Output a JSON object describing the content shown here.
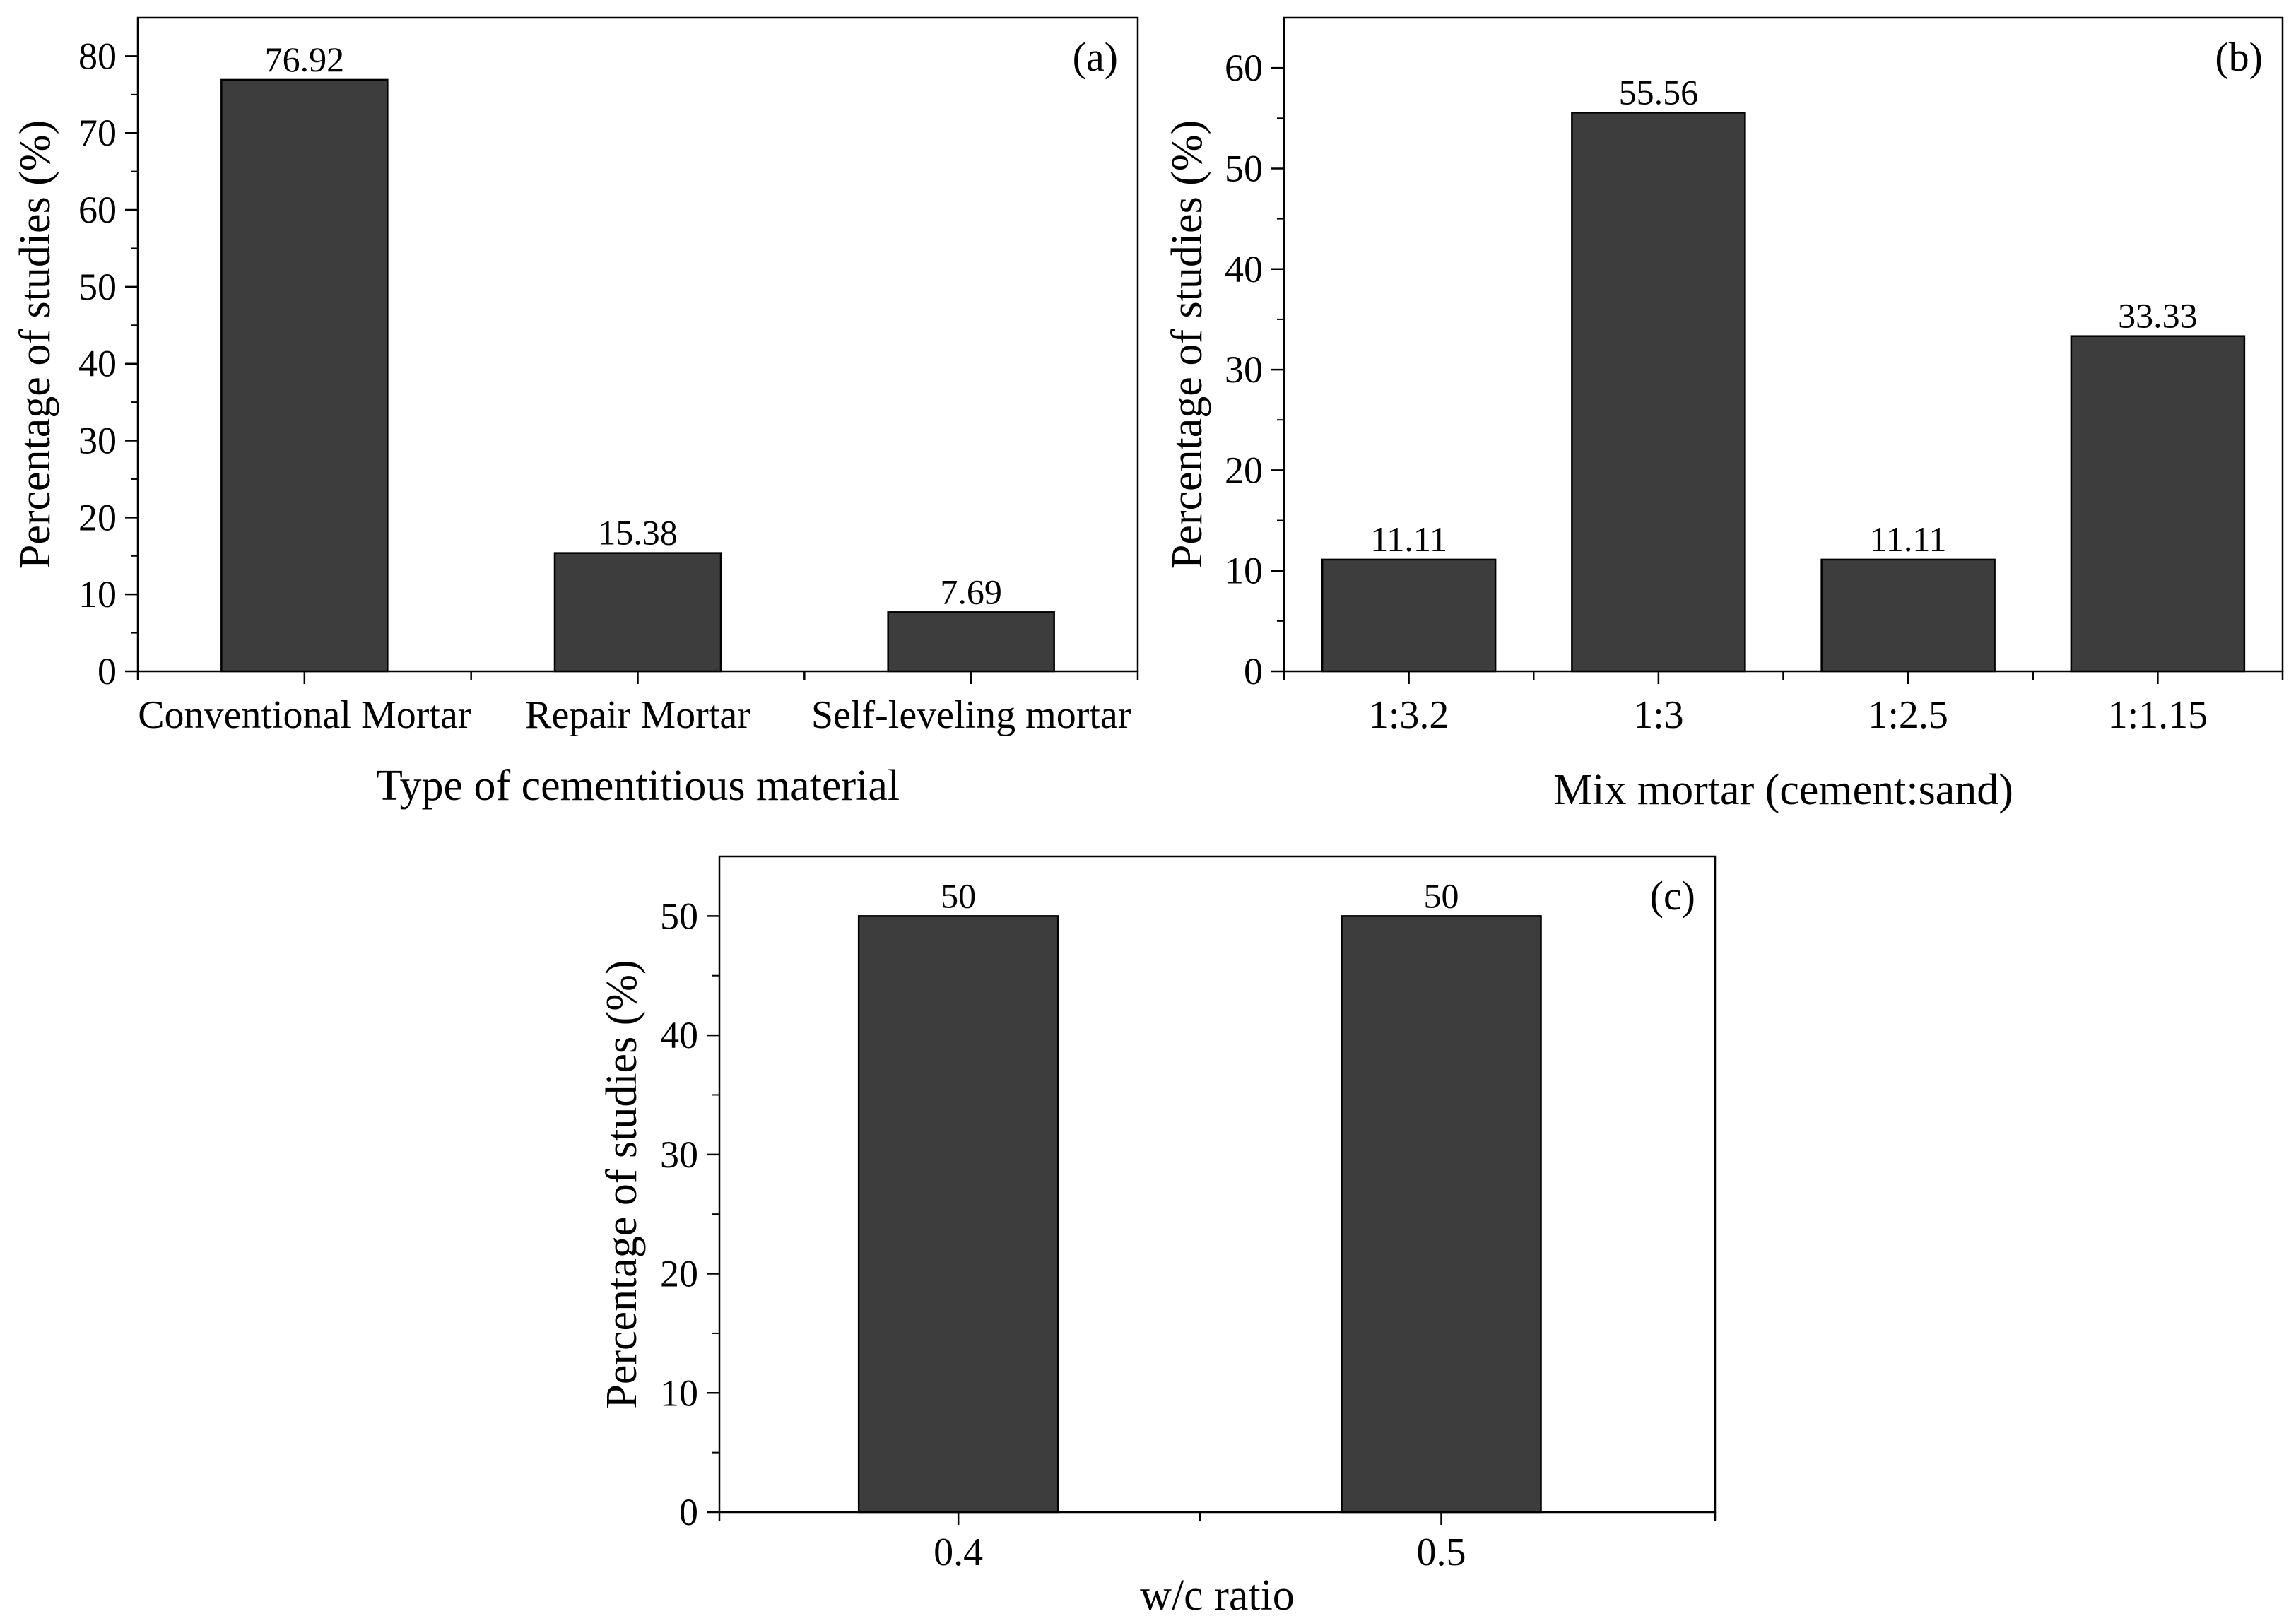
{
  "figure": {
    "colors": {
      "bar": "#3d3d3d",
      "stroke": "#000000",
      "background": "#ffffff"
    }
  },
  "chart_data": [
    {
      "id": "a",
      "type": "bar",
      "panel_label": "(a)",
      "title": "",
      "xlabel": "Type of cementitious material",
      "ylabel": "Percentage of studies (%)",
      "categories": [
        "Conventional Mortar",
        "Repair Mortar",
        "Self-leveling mortar"
      ],
      "values": [
        76.92,
        15.38,
        7.69
      ],
      "value_labels": [
        "76.92",
        "15.38",
        "7.69"
      ],
      "ylim": [
        0,
        85
      ],
      "yticks": [
        0,
        10,
        20,
        30,
        40,
        50,
        60,
        70,
        80
      ],
      "ytick_labels": [
        "0",
        "10",
        "20",
        "30",
        "40",
        "50",
        "60",
        "70",
        "80"
      ],
      "grid": false
    },
    {
      "id": "b",
      "type": "bar",
      "panel_label": "(b)",
      "title": "",
      "xlabel": "Mix mortar (cement:sand)",
      "ylabel": "Percentage of studies (%)",
      "categories": [
        "1:3.2",
        "1:3",
        "1:2.5",
        "1:1.15"
      ],
      "values": [
        11.11,
        55.56,
        11.11,
        33.33
      ],
      "value_labels": [
        "11.11",
        "55.56",
        "11.11",
        "33.33"
      ],
      "ylim": [
        0,
        65
      ],
      "yticks": [
        0,
        10,
        20,
        30,
        40,
        50,
        60
      ],
      "ytick_labels": [
        "0",
        "10",
        "20",
        "30",
        "40",
        "50",
        "60"
      ],
      "grid": false
    },
    {
      "id": "c",
      "type": "bar",
      "panel_label": "(c)",
      "title": "",
      "xlabel": "w/c ratio",
      "ylabel": "Percentage of studies (%)",
      "categories": [
        "0.4",
        "0.5"
      ],
      "values": [
        50,
        50
      ],
      "value_labels": [
        "50",
        "50"
      ],
      "ylim": [
        0,
        55
      ],
      "yticks": [
        0,
        10,
        20,
        30,
        40,
        50
      ],
      "ytick_labels": [
        "0",
        "10",
        "20",
        "30",
        "40",
        "50"
      ],
      "grid": false
    }
  ]
}
